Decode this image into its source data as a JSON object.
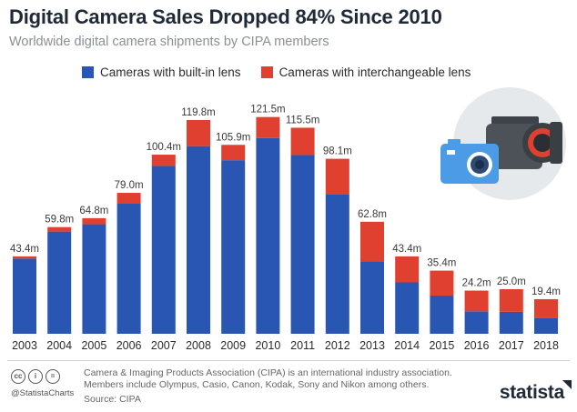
{
  "header": {
    "title": "Digital Camera Sales Dropped 84% Since 2010",
    "subtitle": "Worldwide digital camera shipments by CIPA members"
  },
  "colors": {
    "built_in": "#2a56b3",
    "interchangeable": "#e0402f"
  },
  "chart_data": {
    "type": "bar",
    "stacked": true,
    "categories": [
      "2003",
      "2004",
      "2005",
      "2006",
      "2007",
      "2008",
      "2009",
      "2010",
      "2011",
      "2012",
      "2013",
      "2014",
      "2015",
      "2016",
      "2017",
      "2018"
    ],
    "series": [
      {
        "name": "Cameras with built-in lens",
        "values": [
          42.2,
          57.3,
          61.4,
          72.9,
          94.1,
          105.2,
          97.3,
          109.7,
          100.2,
          78.4,
          40.5,
          28.8,
          21.4,
          12.6,
          12.3,
          8.7
        ]
      },
      {
        "name": "Cameras with interchangeable lens",
        "values": [
          1.2,
          2.5,
          3.4,
          6.1,
          6.3,
          14.6,
          8.6,
          11.8,
          15.3,
          19.7,
          22.3,
          14.6,
          14.0,
          11.6,
          12.7,
          10.7
        ]
      }
    ],
    "data_labels": [
      "43.4m",
      "59.8m",
      "64.8m",
      "79.0m",
      "100.4m",
      "119.8m",
      "105.9m",
      "121.5m",
      "115.5m",
      "98.1m",
      "62.8m",
      "43.4m",
      "35.4m",
      "24.2m",
      "25.0m",
      "19.4m"
    ],
    "ylim": [
      0,
      130
    ],
    "grid": false,
    "legend_position": "top"
  },
  "footer": {
    "cc_icons": [
      "cc",
      "i",
      "="
    ],
    "handle": "@StatistaCharts",
    "note": "Camera & Imaging Products Association (CIPA) is an international industry association. Members include Olympus, Casio, Canon, Kodak, Sony and Nikon among others.",
    "source": "Source: CIPA",
    "brand": "statista"
  },
  "illustration": {
    "icon": "camera-icon"
  }
}
